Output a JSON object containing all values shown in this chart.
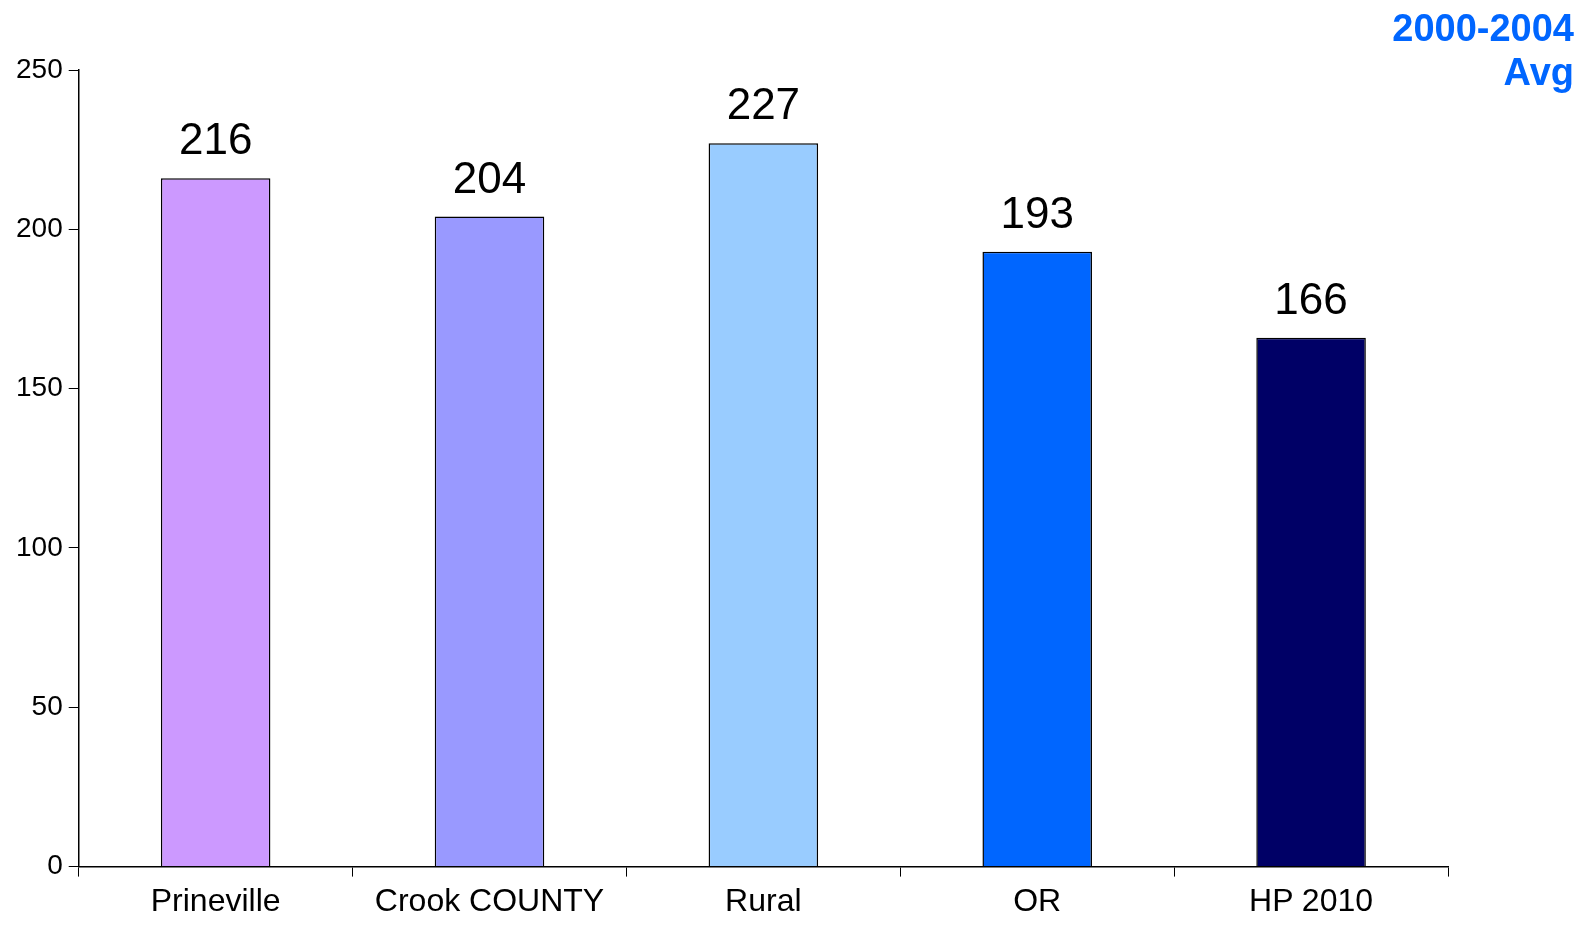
{
  "chart_data": {
    "type": "bar",
    "title": "2000-2004 Avg",
    "categories": [
      "Prineville",
      "Crook COUNTY",
      "Rural",
      "OR",
      "HP 2010"
    ],
    "values": [
      216,
      204,
      227,
      193,
      166
    ],
    "colors": [
      "#cc99ff",
      "#9999ff",
      "#99ccff",
      "#0066ff",
      "#000066"
    ],
    "ylim": [
      0,
      250
    ],
    "yticks": [
      0,
      50,
      100,
      150,
      200,
      250
    ],
    "grid": false,
    "legend": false,
    "data_labels": true
  }
}
